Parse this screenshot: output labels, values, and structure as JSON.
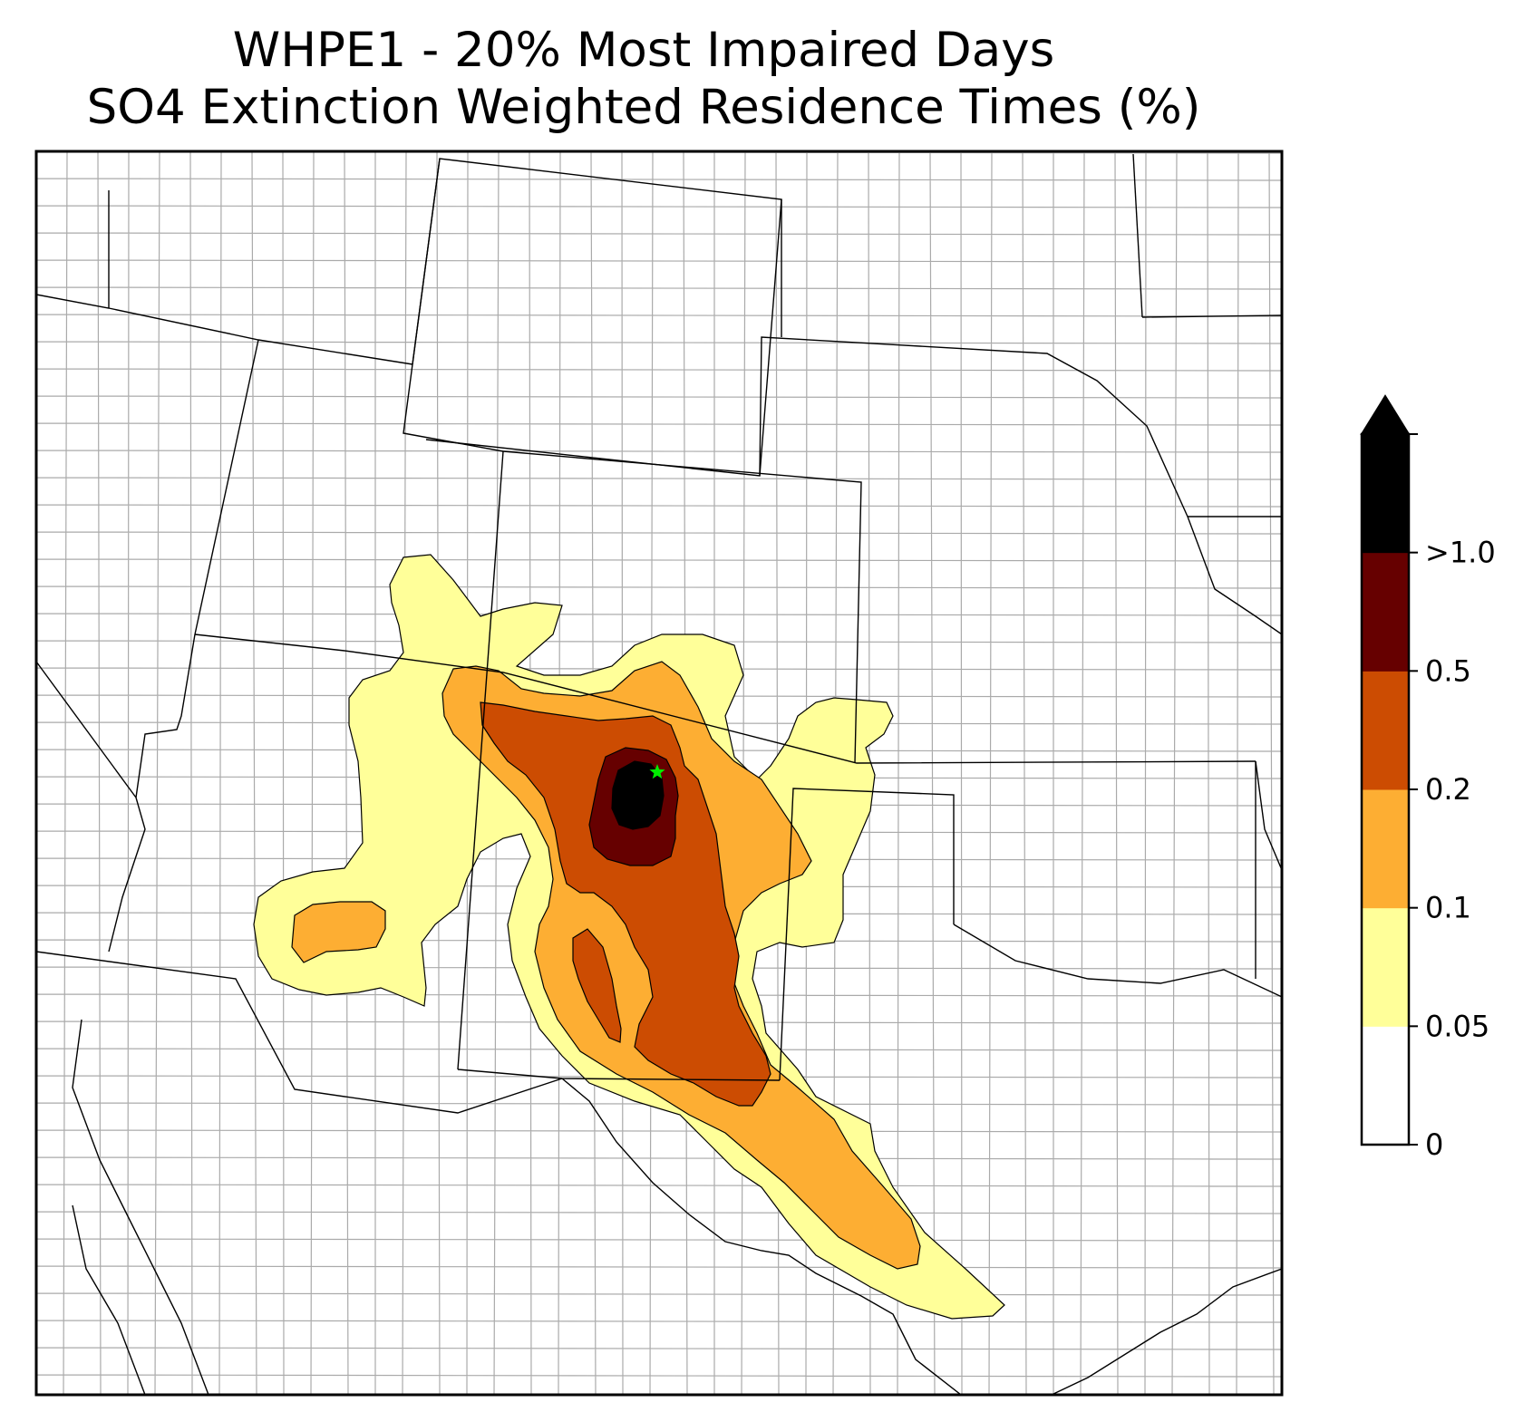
{
  "title": {
    "line1": "WHPE1 - 20% Most Impaired Days",
    "line2": "SO4 Extinction Weighted Residence Times (%)"
  },
  "colorbar": {
    "extend": "max",
    "bins": [
      {
        "from": 0,
        "to": 0.05,
        "color": "#ffffff"
      },
      {
        "from": 0.05,
        "to": 0.1,
        "color": "#ffff99"
      },
      {
        "from": 0.1,
        "to": 0.2,
        "color": "#fdae33"
      },
      {
        "from": 0.2,
        "to": 0.5,
        "color": "#cc4c02"
      },
      {
        "from": 0.5,
        "to": 1.0,
        "color": "#660000"
      },
      {
        "from": 1.0,
        "to": null,
        "color": "#000000"
      }
    ],
    "tick_labels": [
      "0",
      "0.05",
      "0.1",
      "0.2",
      "0.5",
      ">1.0"
    ]
  },
  "site_marker": {
    "name": "WHPE1",
    "symbol": "star",
    "color": "#00ee00"
  },
  "map_region": "Southwestern / South-Central United States"
}
